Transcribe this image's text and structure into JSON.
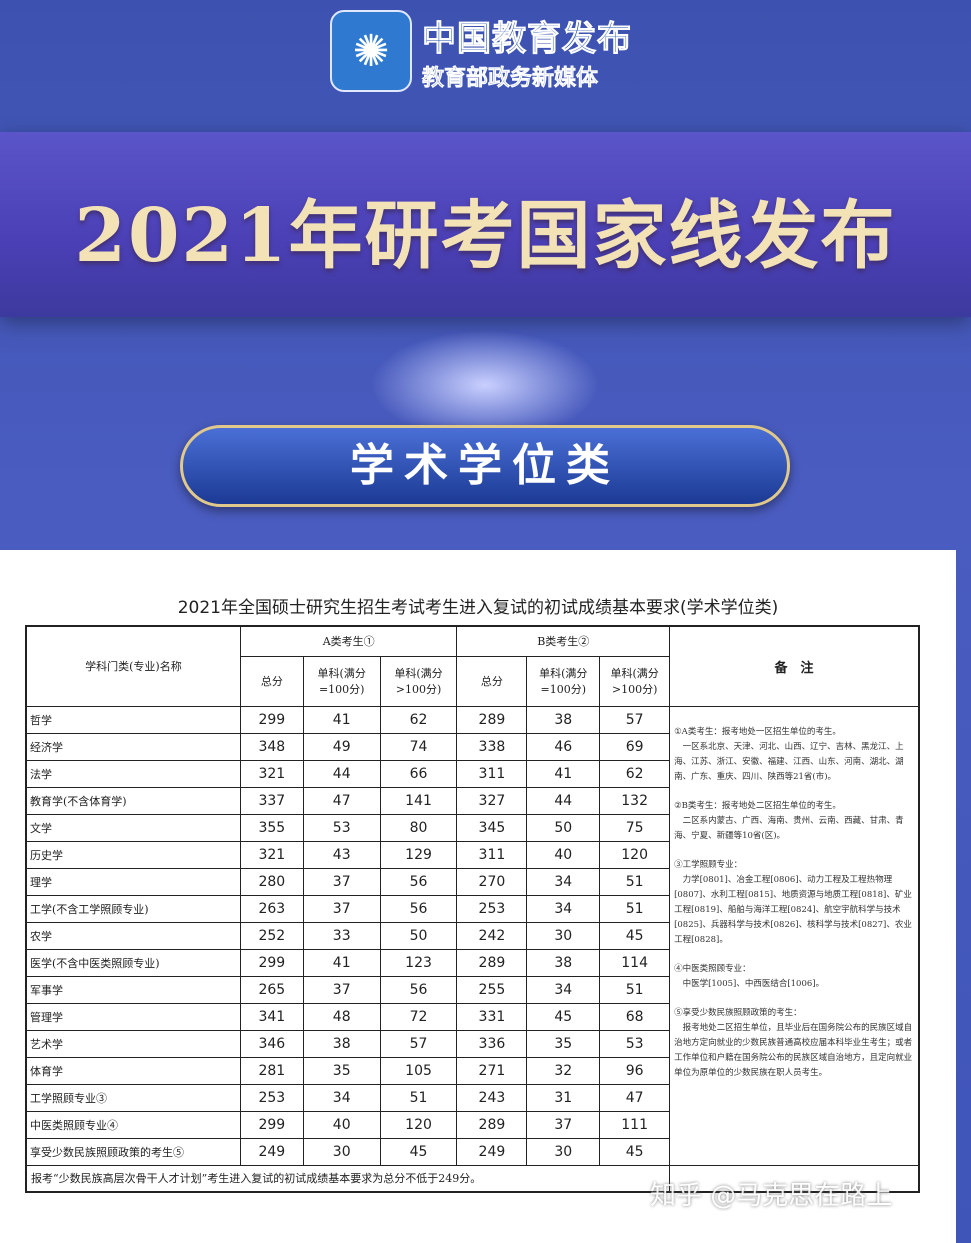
{
  "logo": {
    "title": "中国教育发布",
    "subtitle": "教育部政务新媒体"
  },
  "banner": {
    "title": "2021年研考国家线发布"
  },
  "category": "学术学位类",
  "document": {
    "title": "2021年全国硕士研究生招生考试考生进入复试的初试成绩基本要求(学术学位类)",
    "headers": {
      "subject": "学科门类(专业)名称",
      "groupA": "A类考生①",
      "groupB": "B类考生②",
      "total": "总分",
      "single100": "单科(满分=100分)",
      "singleOver100": "单科(满分>100分)",
      "notes": "备　注"
    },
    "rows": [
      {
        "name": "哲学",
        "a": [
          299,
          41,
          62
        ],
        "b": [
          289,
          38,
          57
        ]
      },
      {
        "name": "经济学",
        "a": [
          348,
          49,
          74
        ],
        "b": [
          338,
          46,
          69
        ]
      },
      {
        "name": "法学",
        "a": [
          321,
          44,
          66
        ],
        "b": [
          311,
          41,
          62
        ]
      },
      {
        "name": "教育学(不含体育学)",
        "a": [
          337,
          47,
          141
        ],
        "b": [
          327,
          44,
          132
        ]
      },
      {
        "name": "文学",
        "a": [
          355,
          53,
          80
        ],
        "b": [
          345,
          50,
          75
        ]
      },
      {
        "name": "历史学",
        "a": [
          321,
          43,
          129
        ],
        "b": [
          311,
          40,
          120
        ]
      },
      {
        "name": "理学",
        "a": [
          280,
          37,
          56
        ],
        "b": [
          270,
          34,
          51
        ]
      },
      {
        "name": "工学(不含工学照顾专业)",
        "a": [
          263,
          37,
          56
        ],
        "b": [
          253,
          34,
          51
        ]
      },
      {
        "name": "农学",
        "a": [
          252,
          33,
          50
        ],
        "b": [
          242,
          30,
          45
        ]
      },
      {
        "name": "医学(不含中医类照顾专业)",
        "a": [
          299,
          41,
          123
        ],
        "b": [
          289,
          38,
          114
        ]
      },
      {
        "name": "军事学",
        "a": [
          265,
          37,
          56
        ],
        "b": [
          255,
          34,
          51
        ]
      },
      {
        "name": "管理学",
        "a": [
          341,
          48,
          72
        ],
        "b": [
          331,
          45,
          68
        ]
      },
      {
        "name": "艺术学",
        "a": [
          346,
          38,
          57
        ],
        "b": [
          336,
          35,
          53
        ]
      },
      {
        "name": "体育学",
        "a": [
          281,
          35,
          105
        ],
        "b": [
          271,
          32,
          96
        ]
      },
      {
        "name": "工学照顾专业③",
        "a": [
          253,
          34,
          51
        ],
        "b": [
          243,
          31,
          47
        ]
      },
      {
        "name": "中医类照顾专业④",
        "a": [
          299,
          40,
          120
        ],
        "b": [
          289,
          37,
          111
        ]
      },
      {
        "name": "享受少数民族照顾政策的考生⑤",
        "a": [
          249,
          30,
          45
        ],
        "b": [
          249,
          30,
          45
        ]
      }
    ],
    "notes": [
      "①A类考生：报考地处一区招生单位的考生。\n　一区系北京、天津、河北、山西、辽宁、吉林、黑龙江、上海、江苏、浙江、安徽、福建、江西、山东、河南、湖北、湖南、广东、重庆、四川、陕西等21省(市)。",
      "②B类考生：报考地处二区招生单位的考生。\n　二区系内蒙古、广西、海南、贵州、云南、西藏、甘肃、青海、宁夏、新疆等10省(区)。",
      "③工学照顾专业：\n　力学[0801]、冶金工程[0806]、动力工程及工程热物理[0807]、水利工程[0815]、地质资源与地质工程[0818]、矿业工程[0819]、船舶与海洋工程[0824]、航空宇航科学与技术[0825]、兵器科学与技术[0826]、核科学与技术[0827]、农业工程[0828]。",
      "④中医类照顾专业：\n　中医学[1005]、中西医结合[1006]。",
      "⑤享受少数民族照顾政策的考生：\n　报考地处二区招生单位，且毕业后在国务院公布的民族区域自治地方定向就业的少数民族普通高校应届本科毕业生考生；或者工作单位和户籍在国务院公布的民族区域自治地方，且定向就业单位为原单位的少数民族在职人员考生。"
    ],
    "footnote": "报考“少数民族高层次骨干人才计划”考生进入复试的初试成绩基本要求为总分不低于249分。"
  },
  "watermark": "知乎 @马克思在路上"
}
